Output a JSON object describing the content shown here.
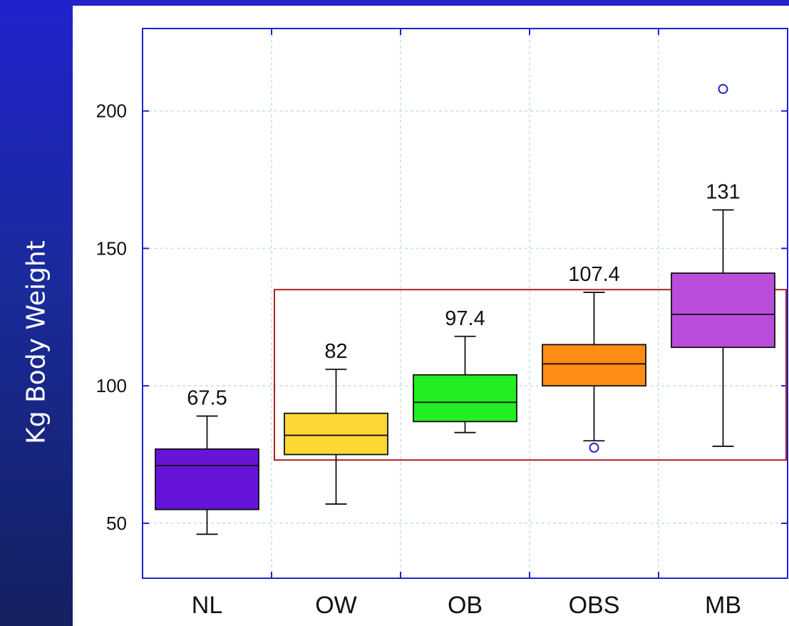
{
  "chart_data": {
    "type": "box",
    "ylabel": "Kg Body Weight",
    "ylim": [
      30,
      230
    ],
    "yticks": [
      50,
      100,
      150,
      200
    ],
    "grid": true,
    "categories": [
      "NL",
      "OW",
      "OB",
      "OBS",
      "MB"
    ],
    "boxes": [
      {
        "category": "NL",
        "color": "#6614d8",
        "whisker_low": 46,
        "q1": 55,
        "median": 71,
        "q3": 77,
        "whisker_high": 89,
        "label": "67.5",
        "outliers": []
      },
      {
        "category": "OW",
        "color": "#fdd835",
        "whisker_low": 57,
        "q1": 75,
        "median": 82,
        "q3": 90,
        "whisker_high": 106,
        "label": "82",
        "outliers": []
      },
      {
        "category": "OB",
        "color": "#22ee22",
        "whisker_low": 83,
        "q1": 87,
        "median": 94,
        "q3": 104,
        "whisker_high": 118,
        "label": "97.4",
        "outliers": []
      },
      {
        "category": "OBS",
        "color": "#ff8c14",
        "whisker_low": 80,
        "q1": 100,
        "median": 108,
        "q3": 115,
        "whisker_high": 134,
        "label": "107.4",
        "outliers": [
          77.5
        ]
      },
      {
        "category": "MB",
        "color": "#bb4ddd",
        "whisker_low": 78,
        "q1": 114,
        "median": 126,
        "q3": 141,
        "whisker_high": 164,
        "label": "131",
        "outliers": [
          208
        ]
      }
    ],
    "highlight": {
      "from_category": "OW",
      "to_category": "MB",
      "ymin": 73,
      "ymax": 135,
      "color": "#aa2222"
    },
    "axis_color": "#2222cc",
    "grid_color": "#bfe3df",
    "outlier_color": "#2222cc"
  }
}
